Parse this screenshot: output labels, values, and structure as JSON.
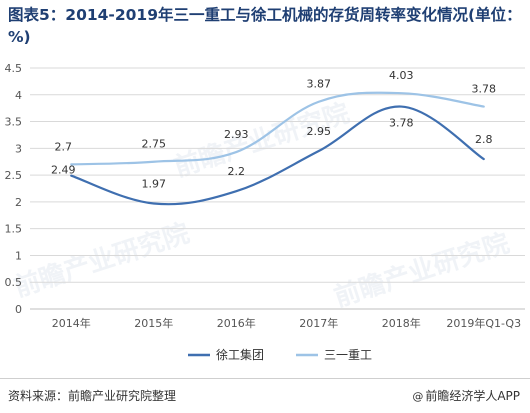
{
  "title": "图表5：2014-2019年三一重工与徐工机械的存货周转率变化情况(单位：%)",
  "source": "资料来源：前瞻产业研究院整理",
  "brand": "前瞻经济学人APP",
  "watermark": "前瞻产业研究院",
  "colors": {
    "xcmg": "#3f6fb0",
    "sany": "#9dc3e6",
    "grid": "#d9d9d9",
    "axis_text": "#555555"
  },
  "chart_data": {
    "type": "line",
    "categories": [
      "2014年",
      "2015年",
      "2016年",
      "2017年",
      "2018年",
      "2019年Q1-Q3"
    ],
    "yticks": [
      "0",
      "0.5",
      "1",
      "1.5",
      "2",
      "2.5",
      "3",
      "3.5",
      "4",
      "4.5"
    ],
    "ylim": [
      0,
      4.5
    ],
    "grid": true,
    "legend_position": "bottom",
    "series": [
      {
        "name": "徐工集团",
        "values": [
          2.49,
          1.97,
          2.2,
          2.95,
          3.78,
          2.8
        ],
        "labels": [
          "2.49",
          "1.97",
          "2.2",
          "2.95",
          "3.78",
          "2.8"
        ]
      },
      {
        "name": "三一重工",
        "values": [
          2.7,
          2.75,
          2.93,
          3.87,
          4.03,
          3.78
        ],
        "labels": [
          "2.7",
          "2.75",
          "2.93",
          "3.87",
          "4.03",
          "3.78"
        ]
      }
    ]
  }
}
